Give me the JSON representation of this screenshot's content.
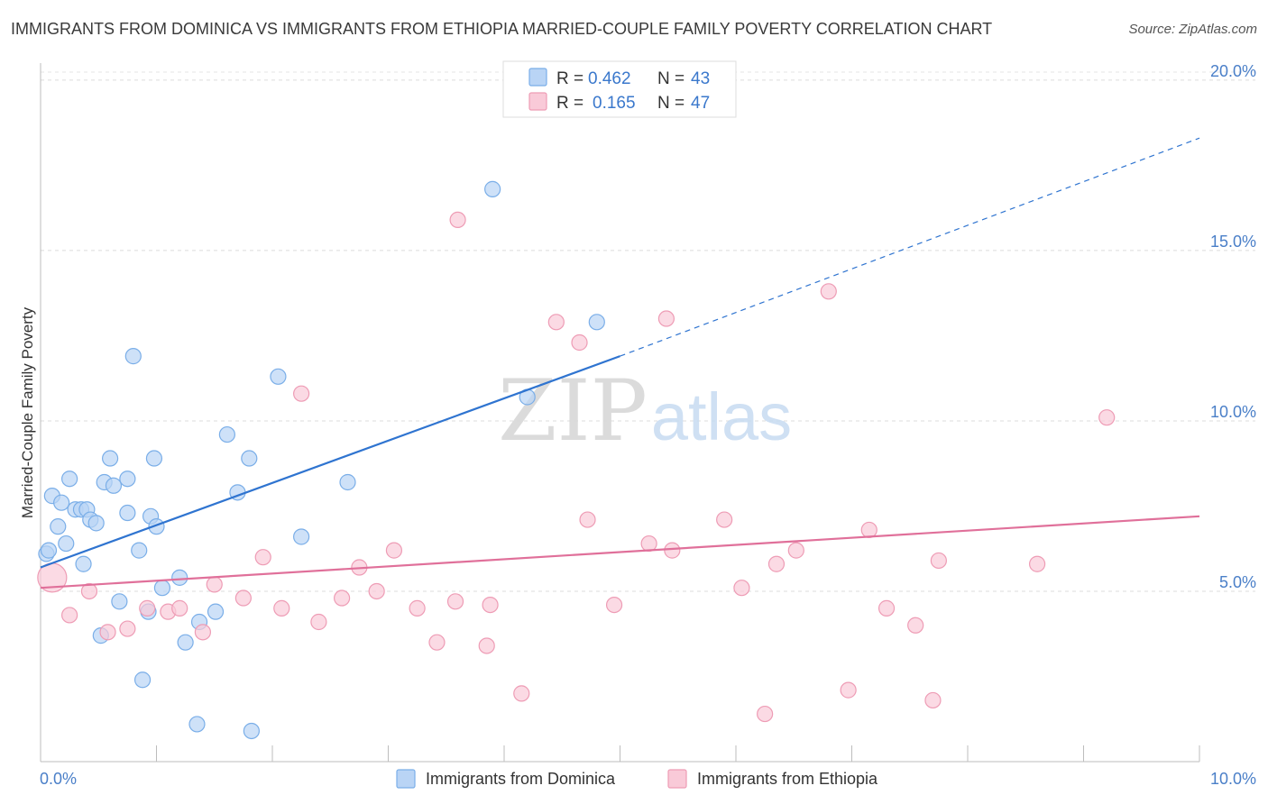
{
  "chart_data": {
    "type": "scatter",
    "title": "IMMIGRANTS FROM DOMINICA VS IMMIGRANTS FROM ETHIOPIA MARRIED-COUPLE FAMILY POVERTY CORRELATION CHART",
    "source": "Source: ZipAtlas.com",
    "xlabel": "",
    "ylabel": "Married-Couple Family Poverty",
    "xlim": [
      0,
      10
    ],
    "ylim": [
      0,
      20.5
    ],
    "x_tick_labels": [
      "0.0%",
      "10.0%"
    ],
    "y_ticks": [
      5,
      10,
      15,
      20
    ],
    "y_tick_labels": [
      "5.0%",
      "10.0%",
      "15.0%",
      "20.0%"
    ],
    "watermark": {
      "zip": "ZIP",
      "atlas": "atlas"
    },
    "legend_stats": {
      "r_label": "R =",
      "n_label": "N =",
      "rows": [
        {
          "r": "0.462",
          "n": "43"
        },
        {
          "r": "0.165",
          "n": "47"
        }
      ]
    },
    "series": [
      {
        "name": "Immigrants from Dominica",
        "color": "#7aaee8",
        "fill": "#b9d4f5",
        "line_color": "#2f74d0",
        "trend": {
          "x0": 0.0,
          "y0": 5.7,
          "x1": 5.0,
          "y1": 11.9,
          "x_dash_end": 10.0,
          "y_dash_end": 18.3
        },
        "points": [
          [
            0.05,
            6.1
          ],
          [
            0.07,
            6.2
          ],
          [
            0.1,
            7.8
          ],
          [
            0.15,
            6.9
          ],
          [
            0.18,
            7.6
          ],
          [
            0.22,
            6.4
          ],
          [
            0.25,
            8.3
          ],
          [
            0.3,
            7.4
          ],
          [
            0.35,
            7.4
          ],
          [
            0.37,
            5.8
          ],
          [
            0.4,
            7.4
          ],
          [
            0.43,
            7.1
          ],
          [
            0.48,
            7.0
          ],
          [
            0.52,
            3.7
          ],
          [
            0.55,
            8.2
          ],
          [
            0.6,
            8.9
          ],
          [
            0.63,
            8.1
          ],
          [
            0.75,
            8.3
          ],
          [
            0.75,
            7.3
          ],
          [
            0.8,
            11.9
          ],
          [
            0.85,
            6.2
          ],
          [
            0.88,
            2.4
          ],
          [
            0.93,
            4.4
          ],
          [
            0.95,
            7.2
          ],
          [
            0.98,
            8.9
          ],
          [
            1.0,
            6.9
          ],
          [
            1.05,
            5.1
          ],
          [
            0.68,
            4.7
          ],
          [
            1.2,
            5.4
          ],
          [
            1.25,
            3.5
          ],
          [
            1.35,
            1.1
          ],
          [
            1.37,
            4.1
          ],
          [
            1.51,
            4.4
          ],
          [
            1.61,
            9.6
          ],
          [
            1.7,
            7.9
          ],
          [
            1.8,
            8.9
          ],
          [
            1.82,
            0.9
          ],
          [
            2.05,
            11.3
          ],
          [
            2.25,
            6.6
          ],
          [
            2.65,
            8.2
          ],
          [
            3.9,
            16.8
          ],
          [
            4.2,
            10.7
          ],
          [
            4.8,
            12.9
          ]
        ]
      },
      {
        "name": "Immigrants from Ethiopia",
        "color": "#ee9cb5",
        "fill": "#f9cad8",
        "line_color": "#e0709a",
        "trend": {
          "x0": 0.0,
          "y0": 5.1,
          "x1": 10.0,
          "y1": 7.2
        },
        "points": [
          [
            0.1,
            5.4
          ],
          [
            0.25,
            4.3
          ],
          [
            0.42,
            5.0
          ],
          [
            0.58,
            3.8
          ],
          [
            0.75,
            3.9
          ],
          [
            0.92,
            4.5
          ],
          [
            1.1,
            4.4
          ],
          [
            1.2,
            4.5
          ],
          [
            1.4,
            3.8
          ],
          [
            1.5,
            5.2
          ],
          [
            1.75,
            4.8
          ],
          [
            1.92,
            6.0
          ],
          [
            2.08,
            4.5
          ],
          [
            2.25,
            10.8
          ],
          [
            2.4,
            4.1
          ],
          [
            2.6,
            4.8
          ],
          [
            2.75,
            5.7
          ],
          [
            2.9,
            5.0
          ],
          [
            3.05,
            6.2
          ],
          [
            3.25,
            4.5
          ],
          [
            3.42,
            3.5
          ],
          [
            3.58,
            4.7
          ],
          [
            3.85,
            3.4
          ],
          [
            3.88,
            4.6
          ],
          [
            3.6,
            15.9
          ],
          [
            4.15,
            2.0
          ],
          [
            4.45,
            12.9
          ],
          [
            4.65,
            12.3
          ],
          [
            4.72,
            7.1
          ],
          [
            4.95,
            4.6
          ],
          [
            5.25,
            6.4
          ],
          [
            5.4,
            13.0
          ],
          [
            5.45,
            6.2
          ],
          [
            5.9,
            7.1
          ],
          [
            6.05,
            5.1
          ],
          [
            6.25,
            1.4
          ],
          [
            6.35,
            5.8
          ],
          [
            6.52,
            6.2
          ],
          [
            6.8,
            13.8
          ],
          [
            6.97,
            2.1
          ],
          [
            7.15,
            6.8
          ],
          [
            7.3,
            4.5
          ],
          [
            7.55,
            4.0
          ],
          [
            7.7,
            1.8
          ],
          [
            7.75,
            5.9
          ],
          [
            8.6,
            5.8
          ],
          [
            9.2,
            10.1
          ]
        ]
      }
    ]
  }
}
